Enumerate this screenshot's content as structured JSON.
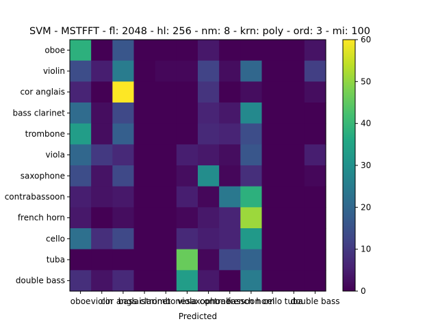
{
  "chart_data": {
    "type": "heatmap",
    "title": "SVM - MSTFFT - fl: 2048 - hl: 256 - nm: 8 - krn: poly - ord: 3 - mi: 100",
    "xlabel": "Predicted",
    "ylabel": "",
    "rows": [
      "oboe",
      "violin",
      "cor anglais",
      "bass clarinet",
      "trombone",
      "viola",
      "saxophone",
      "contrabassoon",
      "french horn",
      "cello",
      "tuba",
      "double bass"
    ],
    "cols": [
      "oboe",
      "violin",
      "cor anglais",
      "bass clarinet",
      "trombone",
      "viola",
      "saxophone",
      "contrabassoon",
      "french horn",
      "cello",
      "tuba",
      "double bass"
    ],
    "values": [
      [
        38,
        0,
        16,
        0,
        0,
        0,
        4,
        0,
        0,
        0,
        0,
        3
      ],
      [
        14,
        5,
        25,
        0,
        1,
        1,
        12,
        2,
        20,
        0,
        0,
        11
      ],
      [
        6,
        0,
        60,
        0,
        0,
        0,
        9,
        0,
        2,
        0,
        0,
        2
      ],
      [
        21,
        2,
        13,
        0,
        0,
        0,
        6,
        4,
        28,
        0,
        0,
        0
      ],
      [
        33,
        2,
        18,
        0,
        0,
        0,
        7,
        6,
        14,
        0,
        0,
        0
      ],
      [
        20,
        10,
        7,
        0,
        0,
        5,
        4,
        2,
        16,
        0,
        0,
        5
      ],
      [
        14,
        3,
        13,
        0,
        0,
        2,
        29,
        1,
        8,
        0,
        0,
        1
      ],
      [
        5,
        3,
        4,
        0,
        0,
        5,
        1,
        24,
        38,
        0,
        0,
        0
      ],
      [
        4,
        0,
        2,
        0,
        0,
        1,
        4,
        6,
        51,
        0,
        0,
        0
      ],
      [
        22,
        8,
        13,
        0,
        0,
        7,
        5,
        6,
        32,
        0,
        0,
        0
      ],
      [
        0,
        0,
        0,
        0,
        0,
        46,
        1,
        13,
        19,
        0,
        0,
        0
      ],
      [
        8,
        3,
        7,
        0,
        0,
        33,
        4,
        0,
        25,
        0,
        0,
        0
      ]
    ],
    "colorbar": {
      "min": 0,
      "max": 60,
      "ticks": [
        0,
        10,
        20,
        30,
        40,
        50,
        60
      ]
    },
    "colormap": "viridis",
    "grid": false
  }
}
